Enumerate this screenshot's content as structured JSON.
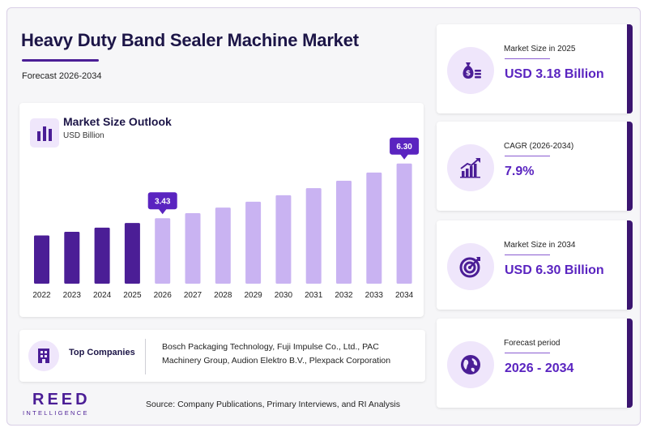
{
  "header": {
    "title": "Heavy Duty Band Sealer Machine Market",
    "subtitle": "Forecast 2026-2034"
  },
  "chart_card": {
    "title": "Market Size Outlook",
    "unit": "USD Billion",
    "icon": "bar-chart-icon"
  },
  "chart_data": {
    "type": "bar",
    "title": "Market Size Outlook",
    "ylabel": "USD Billion",
    "categories": [
      "2022",
      "2023",
      "2024",
      "2025",
      "2026",
      "2027",
      "2028",
      "2029",
      "2030",
      "2031",
      "2032",
      "2033",
      "2034"
    ],
    "values": [
      2.53,
      2.72,
      2.94,
      3.18,
      3.43,
      3.7,
      3.99,
      4.3,
      4.64,
      5.01,
      5.4,
      5.83,
      6.3
    ],
    "historical_years": [
      "2022",
      "2023",
      "2024",
      "2025"
    ],
    "callouts": [
      {
        "category": "2026",
        "label": "3.43"
      },
      {
        "category": "2034",
        "label": "6.30"
      }
    ],
    "ylim": [
      0,
      6.8
    ],
    "grid": false,
    "colors": {
      "historical": "#4b1e96",
      "forecast": "#c9b3f2",
      "callout": "#5a24c0"
    }
  },
  "companies": {
    "label": "Top Companies",
    "text": "Bosch Packaging Technology, Fuji Impulse Co., Ltd., PAC Machinery Group, Audion Elektro B.V., Plexpack Corporation",
    "icon": "building-icon"
  },
  "logo": {
    "name": "REED",
    "sub": "INTELLIGENCE"
  },
  "source": "Source: Company Publications, Primary Interviews, and RI Analysis",
  "stats": [
    {
      "label": "Market Size in 2025",
      "value": "USD 3.18 Billion",
      "icon": "money-bag-icon"
    },
    {
      "label": "CAGR (2026-2034)",
      "value": "7.9%",
      "icon": "growth-chart-icon"
    },
    {
      "label": "Market Size in 2034",
      "value": "USD 6.30 Billion",
      "icon": "target-icon"
    },
    {
      "label": "Forecast period",
      "value": "2026 - 2034",
      "icon": "globe-icon"
    }
  ],
  "colors": {
    "accent": "#4b1e96",
    "accent_light": "#efe6fb",
    "value_text": "#5a24c0",
    "title_text": "#1c1547"
  }
}
